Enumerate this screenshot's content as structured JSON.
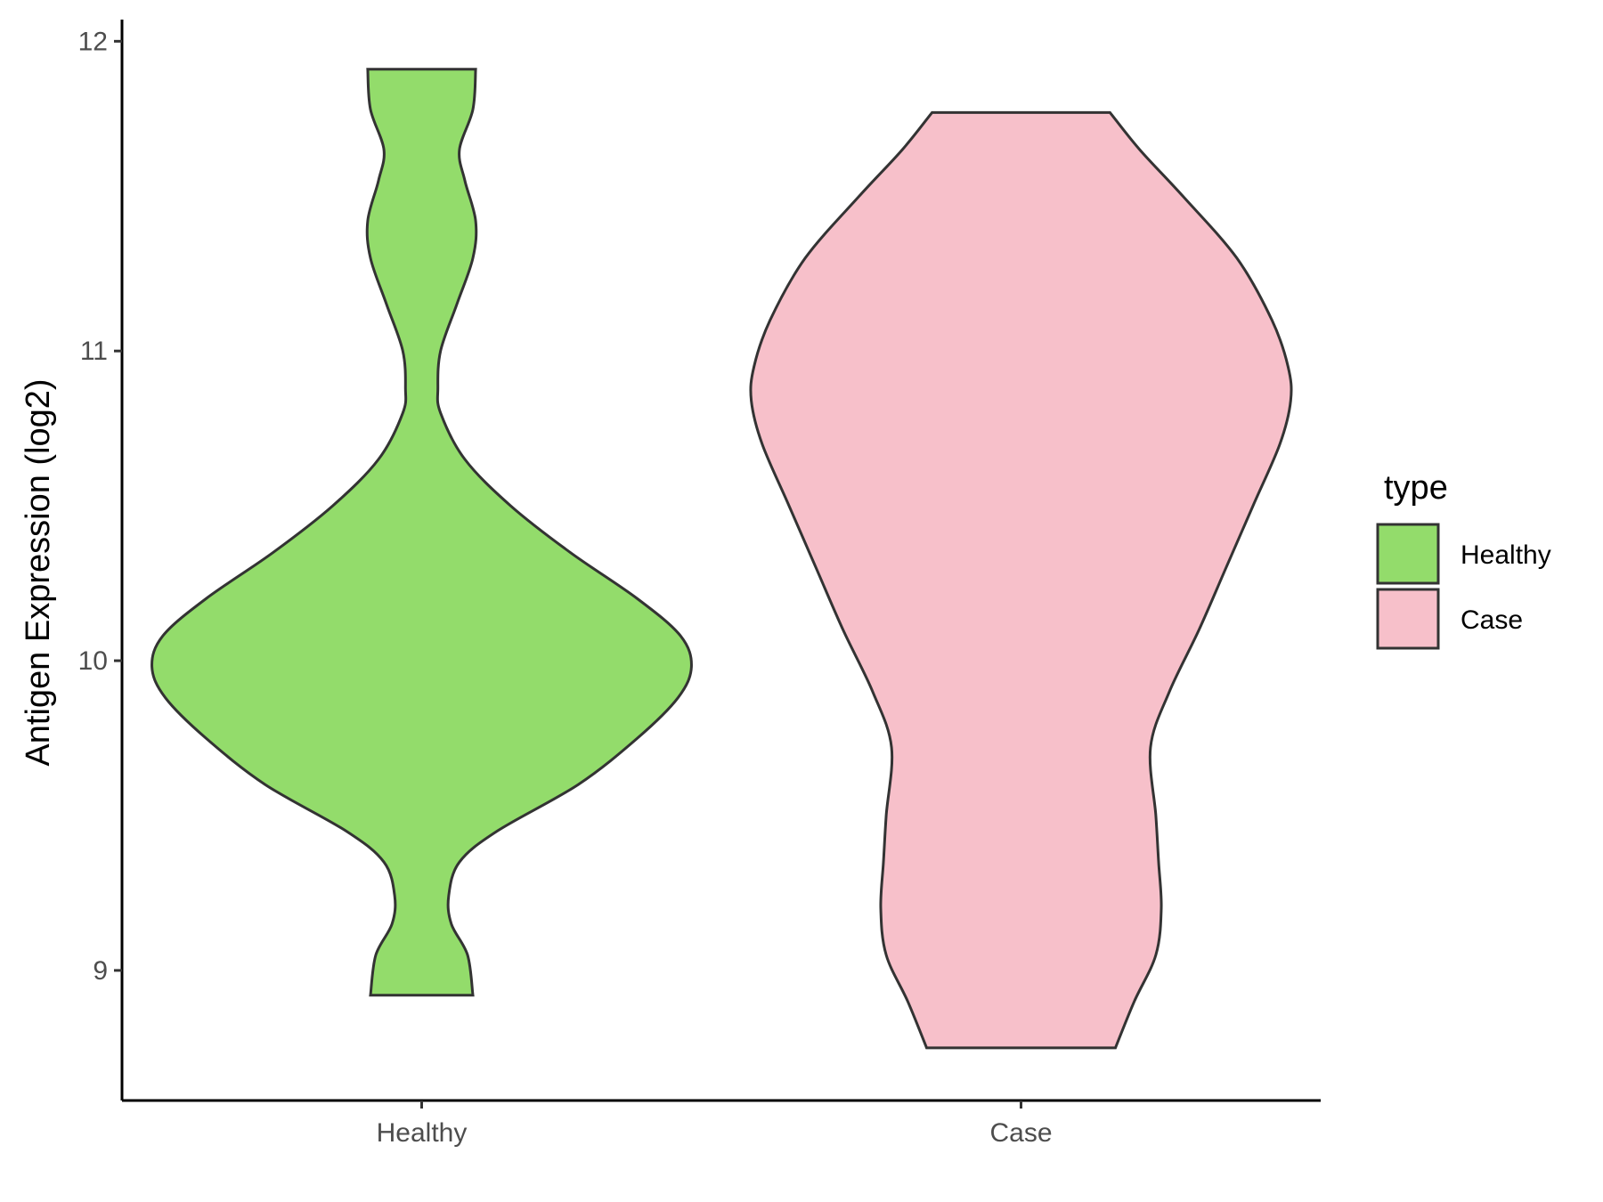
{
  "chart_data": {
    "type": "violin",
    "ylabel": "Antigen Expression (log2)",
    "xlabel": "",
    "categories": [
      "Healthy",
      "Case"
    ],
    "ylim": [
      8.58,
      12.07
    ],
    "yticks": [
      9,
      10,
      11,
      12
    ],
    "grid": false,
    "legend": {
      "title": "type",
      "position": "right",
      "entries": [
        "Healthy",
        "Case"
      ]
    },
    "colors": {
      "Healthy": "#93dc6b",
      "Case": "#f7c0ca",
      "outline": "#333333"
    },
    "series": [
      {
        "category": "Healthy",
        "min": 8.92,
        "max": 11.91,
        "density_profile": [
          [
            8.92,
            0.19
          ],
          [
            9.05,
            0.17
          ],
          [
            9.15,
            0.11
          ],
          [
            9.24,
            0.1
          ],
          [
            9.35,
            0.14
          ],
          [
            9.45,
            0.28
          ],
          [
            9.6,
            0.58
          ],
          [
            9.75,
            0.8
          ],
          [
            9.88,
            0.95
          ],
          [
            9.98,
            1.0
          ],
          [
            10.08,
            0.96
          ],
          [
            10.2,
            0.8
          ],
          [
            10.35,
            0.55
          ],
          [
            10.5,
            0.33
          ],
          [
            10.65,
            0.16
          ],
          [
            10.8,
            0.07
          ],
          [
            10.88,
            0.06
          ],
          [
            11.0,
            0.07
          ],
          [
            11.15,
            0.13
          ],
          [
            11.3,
            0.19
          ],
          [
            11.42,
            0.2
          ],
          [
            11.55,
            0.16
          ],
          [
            11.65,
            0.14
          ],
          [
            11.78,
            0.19
          ],
          [
            11.91,
            0.2
          ]
        ]
      },
      {
        "category": "Case",
        "min": 8.75,
        "max": 11.77,
        "density_profile": [
          [
            8.75,
            0.35
          ],
          [
            8.9,
            0.42
          ],
          [
            9.05,
            0.5
          ],
          [
            9.2,
            0.52
          ],
          [
            9.35,
            0.51
          ],
          [
            9.5,
            0.5
          ],
          [
            9.72,
            0.48
          ],
          [
            9.9,
            0.55
          ],
          [
            10.1,
            0.66
          ],
          [
            10.3,
            0.76
          ],
          [
            10.5,
            0.86
          ],
          [
            10.7,
            0.96
          ],
          [
            10.84,
            1.0
          ],
          [
            10.95,
            0.99
          ],
          [
            11.1,
            0.93
          ],
          [
            11.3,
            0.8
          ],
          [
            11.5,
            0.6
          ],
          [
            11.65,
            0.44
          ],
          [
            11.77,
            0.33
          ]
        ]
      }
    ]
  }
}
